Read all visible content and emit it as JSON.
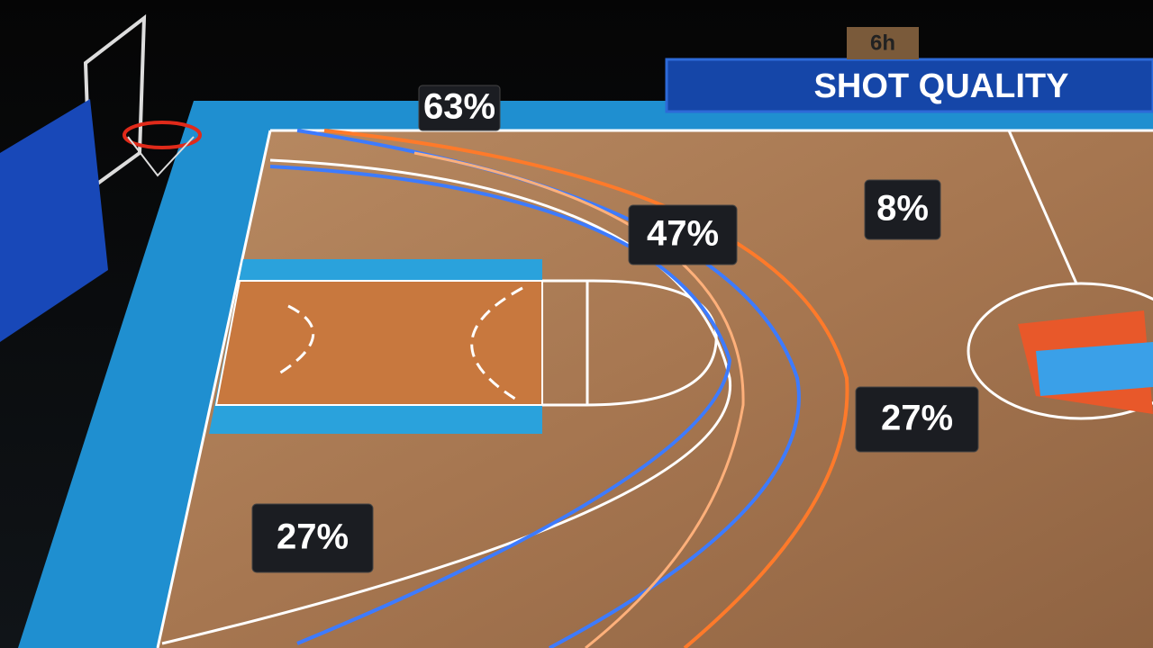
{
  "header": {
    "title": "SHOT QUALITY",
    "scoreboard": "6h"
  },
  "zones": [
    {
      "label": "63%"
    },
    {
      "label": "47%"
    },
    {
      "label": "8%"
    },
    {
      "label": "27%"
    },
    {
      "label": "27%"
    }
  ]
}
